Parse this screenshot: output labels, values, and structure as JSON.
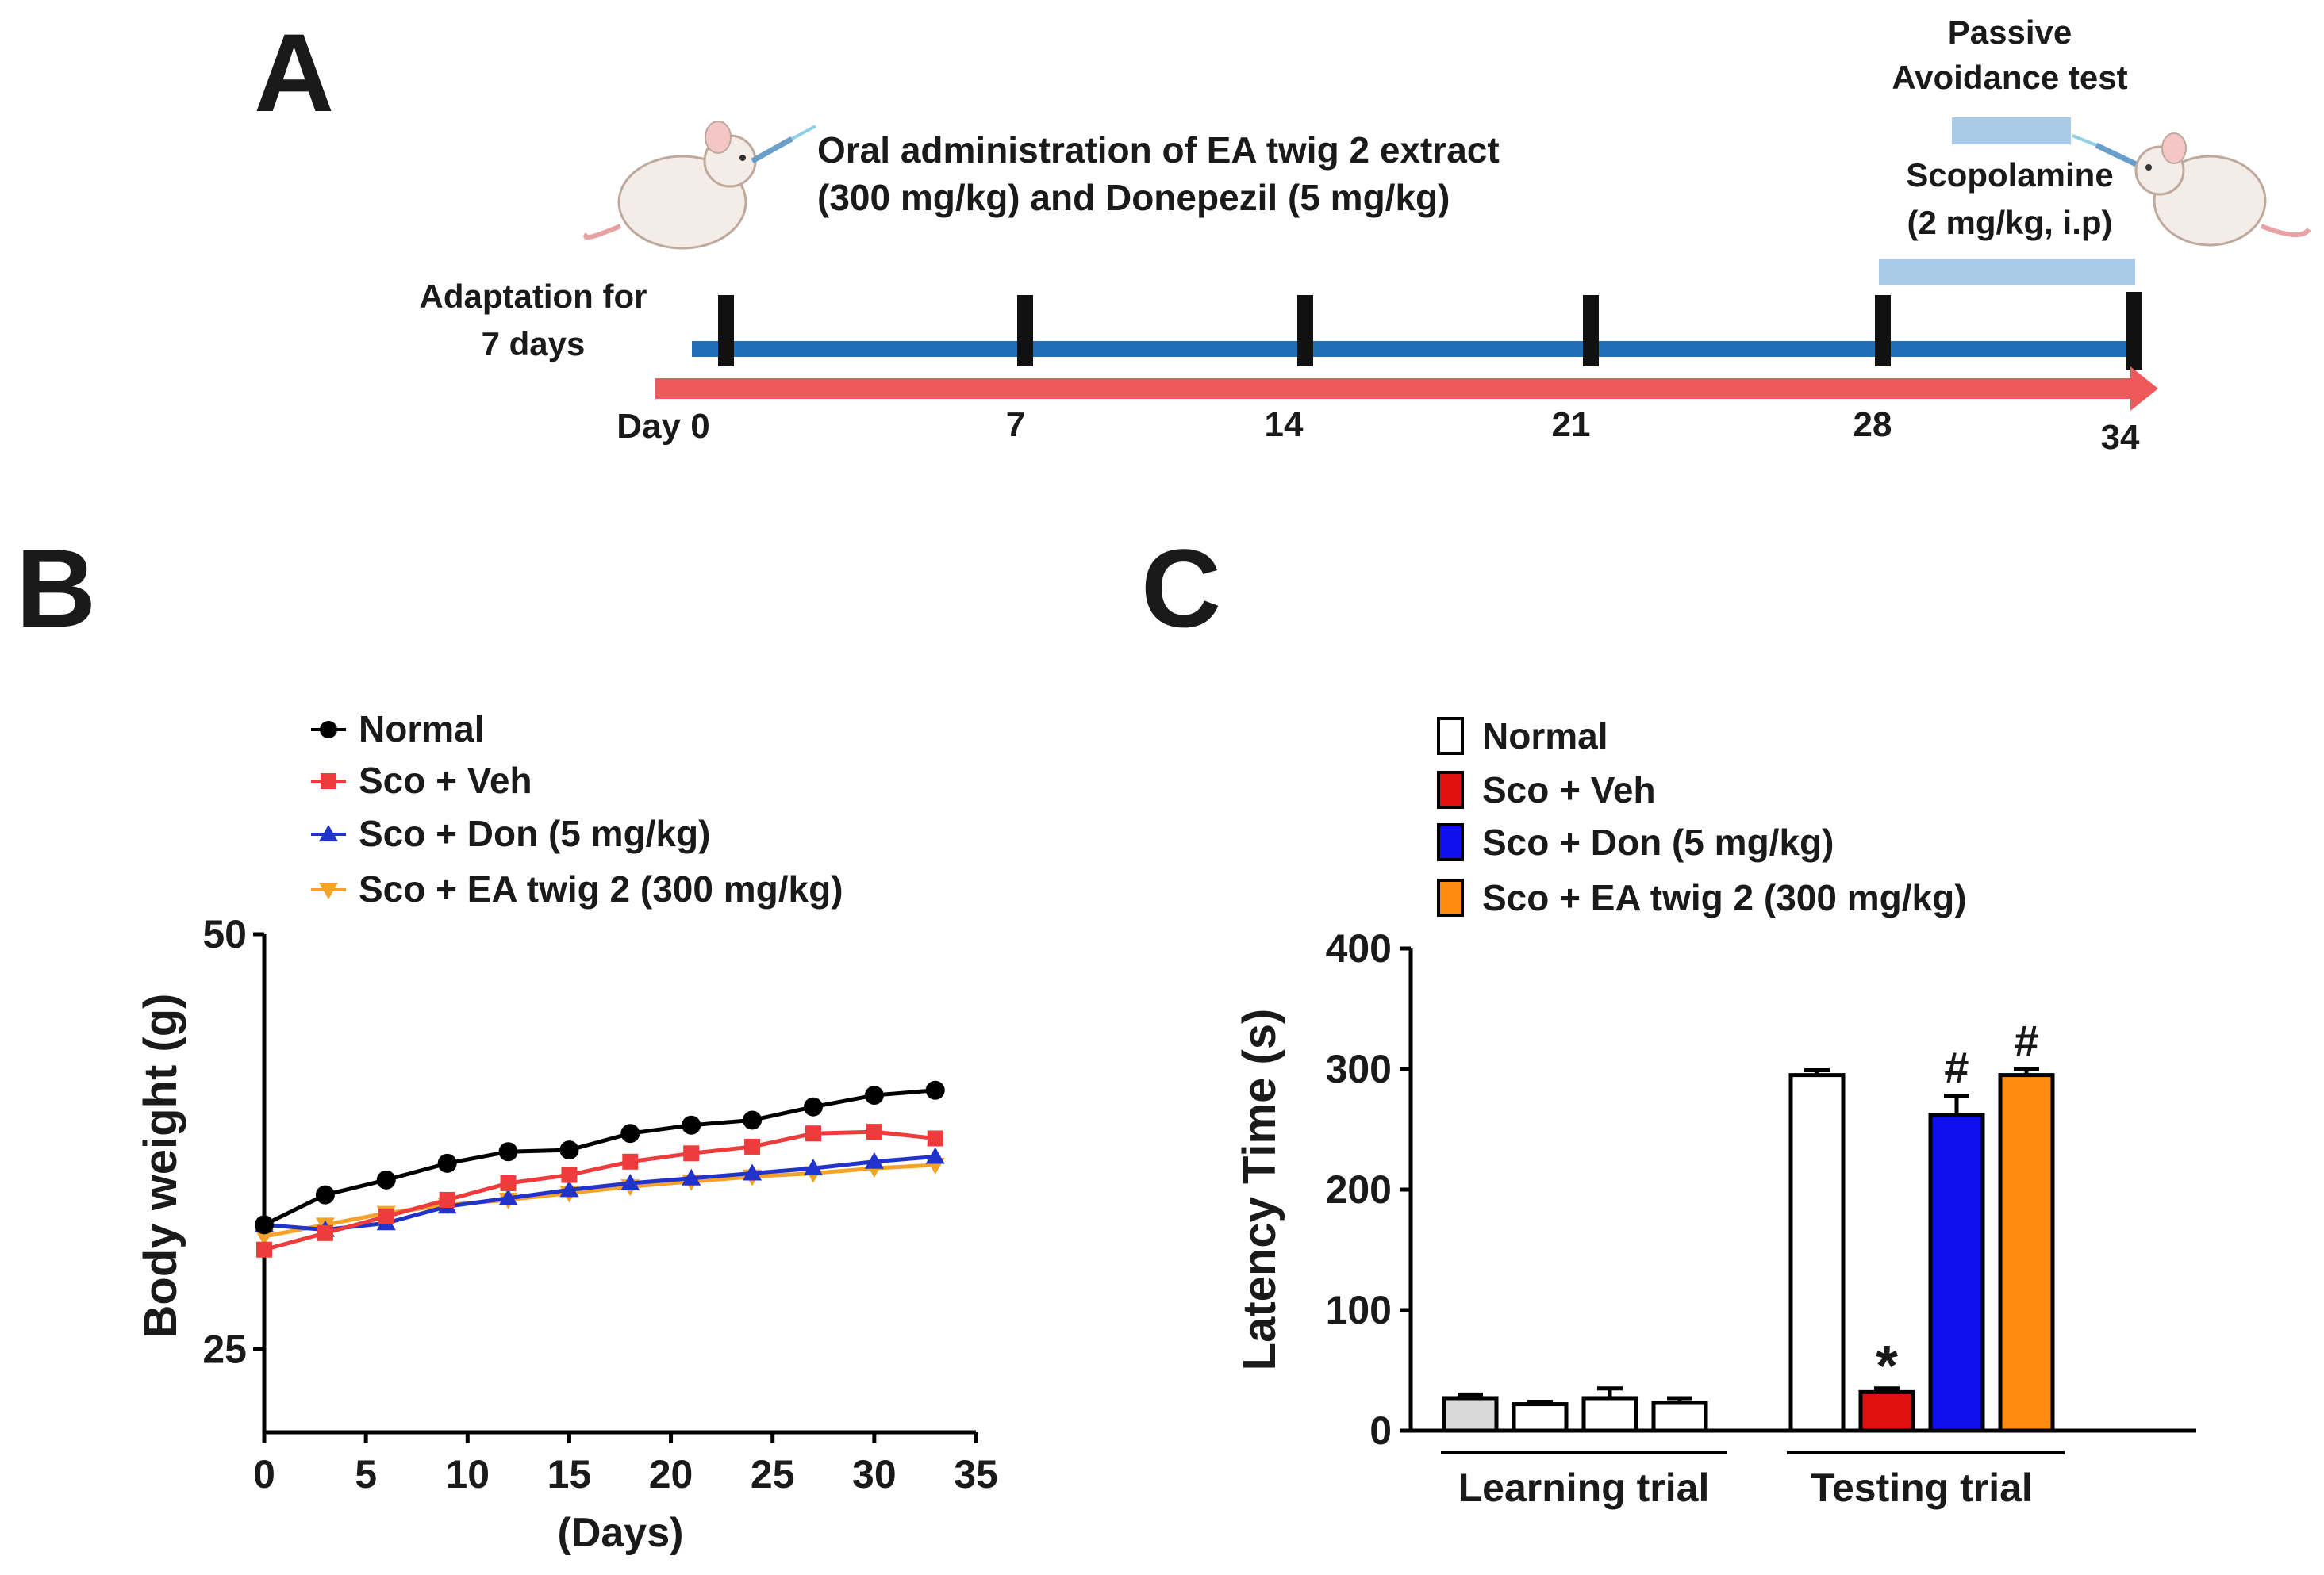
{
  "panel_labels": {
    "a": "A",
    "b": "B",
    "c": "C"
  },
  "timeline": {
    "oral_line1": "Oral administration of EA twig 2 extract",
    "oral_line2": "(300 mg/kg) and Donepezil (5 mg/kg)",
    "passive_line1": "Passive",
    "passive_line2": "Avoidance test",
    "scopolamine_line1": "Scopolamine",
    "scopolamine_line2": "(2 mg/kg, i.p)",
    "adaptation_line1": "Adaptation for",
    "adaptation_line2": "7 days",
    "day_ticks": [
      "Day 0",
      "7",
      "14",
      "21",
      "28",
      "34"
    ],
    "colors": {
      "timeline": "#1f6fb8",
      "arrow": "#ee5a5a",
      "treatment_bar": "#a9cbe8"
    }
  },
  "chart_data": [
    {
      "id": "B",
      "type": "line",
      "title": "",
      "xlabel": "(Days)",
      "ylabel": "Body weight (g)",
      "xlim": [
        0,
        35
      ],
      "ylim": [
        20,
        50
      ],
      "xticks": [
        "0",
        "5",
        "10",
        "15",
        "20",
        "25",
        "30",
        "35"
      ],
      "yticks": [
        "25",
        "50"
      ],
      "x": [
        0,
        3,
        6,
        9,
        12,
        15,
        18,
        21,
        24,
        27,
        30,
        33
      ],
      "series": [
        {
          "name": "Normal",
          "color": "#000000",
          "marker": "circle",
          "values": [
            32.5,
            34.3,
            35.2,
            36.2,
            36.9,
            37.0,
            38.0,
            38.5,
            38.8,
            39.6,
            40.3,
            40.6
          ]
        },
        {
          "name": "Sco + Veh",
          "color": "#ee3b3b",
          "marker": "square",
          "values": [
            31.0,
            32.0,
            33.0,
            34.0,
            35.0,
            35.5,
            36.3,
            36.8,
            37.2,
            38.0,
            38.1,
            37.7
          ]
        },
        {
          "name": "Sco + Don (5 mg/kg)",
          "color": "#2233cc",
          "marker": "triangle",
          "values": [
            32.5,
            32.2,
            32.6,
            33.6,
            34.1,
            34.6,
            35.0,
            35.3,
            35.6,
            35.9,
            36.3,
            36.6
          ]
        },
        {
          "name": "Sco + EA twig 2 (300 mg/kg)",
          "color": "#f5a22a",
          "marker": "triangle-down",
          "values": [
            31.8,
            32.5,
            33.2,
            33.7,
            34.0,
            34.4,
            34.8,
            35.1,
            35.4,
            35.6,
            35.9,
            36.1
          ]
        }
      ]
    },
    {
      "id": "C",
      "type": "bar",
      "title": "",
      "xlabel": "",
      "ylabel": "Latency Time (s)",
      "ylim": [
        0,
        400
      ],
      "yticks": [
        "0",
        "100",
        "200",
        "300",
        "400"
      ],
      "groups": [
        "Learning trial",
        "Testing trial"
      ],
      "categories": [
        "Normal",
        "Sco + Veh",
        "Sco + Don (5 mg/kg)",
        "Sco + EA twig 2 (300 mg/kg)"
      ],
      "legend": [
        {
          "name": "Normal",
          "color": "#ffffff"
        },
        {
          "name": "Sco + Veh",
          "color": "#e01010"
        },
        {
          "name": "Sco + Don (5 mg/kg)",
          "color": "#1010ee"
        },
        {
          "name": "Sco + EA twig 2 (300 mg/kg)",
          "color": "#ff8c10"
        }
      ],
      "series": [
        {
          "group": "Learning trial",
          "values": [
            27,
            22,
            27,
            23
          ],
          "errors": [
            3,
            2,
            8,
            4
          ],
          "colors": [
            "#d9d9d9",
            "#ffffff",
            "#ffffff",
            "#ffffff"
          ],
          "annotations": [
            "",
            "",
            "",
            ""
          ]
        },
        {
          "group": "Testing trial",
          "values": [
            295,
            32,
            262,
            295
          ],
          "errors": [
            4,
            3,
            16,
            5
          ],
          "colors": [
            "#ffffff",
            "#e01010",
            "#1010ee",
            "#ff8c10"
          ],
          "annotations": [
            "",
            "*",
            "#",
            "#"
          ]
        }
      ]
    }
  ]
}
